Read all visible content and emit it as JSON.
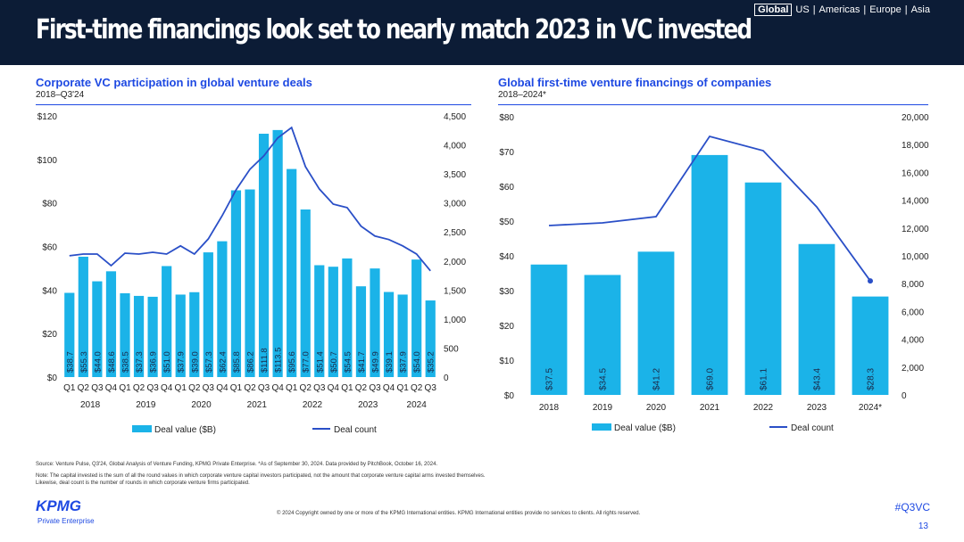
{
  "header": {
    "title": "First-time financings look set to nearly match 2023 in VC invested",
    "regions": [
      "Global",
      "US",
      "Americas",
      "Europe",
      "Asia"
    ],
    "active_region": "Global"
  },
  "colors": {
    "bar": "#1bb3e8",
    "line": "#2a4fc7",
    "accent": "#1e49e2",
    "header": "#0c1c36"
  },
  "chart_data": [
    {
      "type": "bar+line",
      "title": "Corporate VC participation in global venture deals",
      "subtitle": "2018–Q3'24",
      "categories": [
        "Q1",
        "Q2",
        "Q3",
        "Q4",
        "Q1",
        "Q2",
        "Q3",
        "Q4",
        "Q1",
        "Q2",
        "Q3",
        "Q4",
        "Q1",
        "Q2",
        "Q3",
        "Q4",
        "Q1",
        "Q2",
        "Q3",
        "Q4",
        "Q1",
        "Q2",
        "Q3",
        "Q4",
        "Q1",
        "Q2",
        "Q3"
      ],
      "years": [
        "2018",
        "2019",
        "2020",
        "2021",
        "2022",
        "2023",
        "2024"
      ],
      "series": [
        {
          "name": "Deal value ($B)",
          "axis": "left",
          "values": [
            38.7,
            55.3,
            44.0,
            48.6,
            38.5,
            37.3,
            36.9,
            51.0,
            37.9,
            39.0,
            57.3,
            62.4,
            85.8,
            86.2,
            111.8,
            113.5,
            95.6,
            77.0,
            51.4,
            50.7,
            54.5,
            41.7,
            49.9,
            39.1,
            37.9,
            54.0,
            35.2
          ],
          "labels": [
            "$38.7",
            "$55.3",
            "$44.0",
            "$48.6",
            "$38.5",
            "$37.3",
            "$36.9",
            "$51.0",
            "$37.9",
            "$39.0",
            "$57.3",
            "$62.4",
            "$85.8",
            "$86.2",
            "$111.8",
            "$113.5",
            "$95.6",
            "$77.0",
            "$51.4",
            "$50.7",
            "$54.5",
            "$41.7",
            "$49.9",
            "$39.1",
            "$37.9",
            "$54.0",
            "$35.2"
          ]
        },
        {
          "name": "Deal count",
          "axis": "right",
          "values": [
            2090,
            2120,
            2120,
            1920,
            2135,
            2120,
            2150,
            2120,
            2260,
            2120,
            2380,
            2780,
            3225,
            3580,
            3810,
            4120,
            4300,
            3625,
            3240,
            2980,
            2920,
            2600,
            2430,
            2370,
            2260,
            2120,
            1830
          ]
        }
      ],
      "yleft": {
        "range": [
          0,
          120
        ],
        "ticks": [
          "$0",
          "$20",
          "$40",
          "$60",
          "$80",
          "$100",
          "$120"
        ]
      },
      "yright": {
        "range": [
          0,
          4500
        ],
        "ticks": [
          "0",
          "500",
          "1,000",
          "1,500",
          "2,000",
          "2,500",
          "3,000",
          "3,500",
          "4,000",
          "4,500"
        ]
      },
      "legend": "bottom"
    },
    {
      "type": "bar+line",
      "title": "Global first-time venture financings of companies",
      "subtitle": "2018–2024*",
      "categories": [
        "2018",
        "2019",
        "2020",
        "2021",
        "2022",
        "2023",
        "2024*"
      ],
      "series": [
        {
          "name": "Deal value ($B)",
          "axis": "left",
          "values": [
            37.5,
            34.5,
            41.2,
            69.0,
            61.1,
            43.4,
            28.3
          ],
          "labels": [
            "$37.5",
            "$34.5",
            "$41.2",
            "$69.0",
            "$61.1",
            "$43.4",
            "$28.3"
          ]
        },
        {
          "name": "Deal count",
          "axis": "right",
          "values": [
            12180,
            12370,
            12820,
            18590,
            17560,
            13520,
            8200
          ]
        }
      ],
      "yleft": {
        "range": [
          0,
          80
        ],
        "ticks": [
          "$0",
          "$10",
          "$20",
          "$30",
          "$40",
          "$50",
          "$60",
          "$70",
          "$80"
        ]
      },
      "yright": {
        "range": [
          0,
          20000
        ],
        "ticks": [
          "0",
          "2,000",
          "4,000",
          "6,000",
          "8,000",
          "10,000",
          "12,000",
          "14,000",
          "16,000",
          "18,000",
          "20,000"
        ]
      },
      "legend": "bottom"
    }
  ],
  "footer": {
    "source": "Source: Venture Pulse, Q3'24, Global Analysis of Venture Funding, KPMG Private Enterprise. *As of September 30, 2024. Data provided by PitchBook, October 16, 2024.",
    "note": "Note: The capital invested is the sum of all the round values in which corporate venture capital investors participated, not the amount that corporate venture capital arms invested themselves. Likewise, deal count is the number of rounds in which corporate venture firms participated.",
    "copyright": "© 2024 Copyright owned by one or more of the KPMG International entities. KPMG International entities provide no services to clients. All rights reserved.",
    "logo": "KPMG",
    "logo_sub": "Private Enterprise",
    "hashtag": "#Q3VC",
    "page": "13"
  }
}
